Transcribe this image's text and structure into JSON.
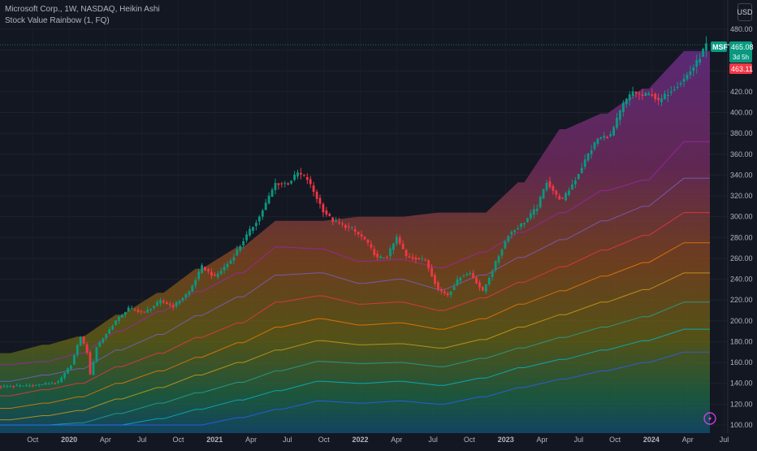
{
  "header": {
    "title": "Microsoft Corp., 1W, NASDAQ, Heikin Ashi",
    "indicator": "Stock Value Rainbow (1, FQ)",
    "currency": "USD"
  },
  "price_tags": {
    "symbol": "MSFT",
    "last": "465.08",
    "countdown": "3d 5h",
    "ha_close": "463.11",
    "symbol_color": "#089981",
    "ha_color": "#f23645"
  },
  "colors": {
    "background": "#131722",
    "up_candle": "#089981",
    "down_candle": "#f23645",
    "axis_text": "#b2b5be"
  },
  "chart_data": {
    "type": "candlestick",
    "y_ticks": [
      "480.00",
      "460.00",
      "440.00",
      "420.00",
      "400.00",
      "380.00",
      "360.00",
      "340.00",
      "320.00",
      "300.00",
      "280.00",
      "260.00",
      "240.00",
      "220.00",
      "200.00",
      "180.00",
      "160.00",
      "140.00",
      "120.00",
      "100.00"
    ],
    "x_ticks": [
      "Oct",
      "2020",
      "Apr",
      "Jul",
      "Oct",
      "2021",
      "Apr",
      "Jul",
      "Oct",
      "2022",
      "Apr",
      "Jul",
      "Oct",
      "2023",
      "Apr",
      "Jul",
      "Oct",
      "2024",
      "Apr",
      "Jul"
    ],
    "ylim": [
      100,
      480
    ],
    "price_path": [
      [
        0,
        137
      ],
      [
        10,
        138
      ],
      [
        18,
        141
      ],
      [
        22,
        158
      ],
      [
        25,
        185
      ],
      [
        27,
        170
      ],
      [
        28,
        148
      ],
      [
        30,
        175
      ],
      [
        36,
        200
      ],
      [
        40,
        212
      ],
      [
        45,
        208
      ],
      [
        50,
        219
      ],
      [
        54,
        214
      ],
      [
        59,
        228
      ],
      [
        63,
        252
      ],
      [
        67,
        242
      ],
      [
        72,
        258
      ],
      [
        77,
        282
      ],
      [
        81,
        300
      ],
      [
        86,
        332
      ],
      [
        90,
        332
      ],
      [
        93,
        342
      ],
      [
        96,
        336
      ],
      [
        101,
        306
      ],
      [
        104,
        296
      ],
      [
        110,
        288
      ],
      [
        114,
        278
      ],
      [
        118,
        260
      ],
      [
        121,
        262
      ],
      [
        124,
        280
      ],
      [
        127,
        262
      ],
      [
        133,
        258
      ],
      [
        137,
        230
      ],
      [
        140,
        225
      ],
      [
        144,
        243
      ],
      [
        147,
        246
      ],
      [
        151,
        228
      ],
      [
        155,
        256
      ],
      [
        159,
        283
      ],
      [
        164,
        295
      ],
      [
        168,
        309
      ],
      [
        171,
        334
      ],
      [
        173,
        325
      ],
      [
        174,
        320
      ],
      [
        176,
        316
      ],
      [
        180,
        336
      ],
      [
        184,
        360
      ],
      [
        187,
        375
      ],
      [
        191,
        378
      ],
      [
        195,
        408
      ],
      [
        198,
        420
      ],
      [
        201,
        416
      ],
      [
        204,
        418
      ],
      [
        206,
        410
      ],
      [
        210,
        422
      ],
      [
        214,
        432
      ],
      [
        218,
        448
      ],
      [
        221,
        465
      ]
    ],
    "rainbow": {
      "steps_x": [
        -5,
        3,
        13,
        15,
        24,
        26,
        36,
        38,
        49,
        51,
        61,
        63,
        74,
        76,
        86,
        88,
        99,
        101,
        112,
        114,
        124,
        126,
        137,
        139,
        150,
        152,
        162,
        164,
        175,
        177,
        188,
        190,
        201,
        203,
        214,
        216,
        223
      ],
      "top_band": [
        169,
        169,
        177,
        177,
        185,
        185,
        206,
        206,
        227,
        227,
        250,
        250,
        271,
        271,
        296,
        296,
        296,
        296,
        300,
        300,
        300,
        300,
        304,
        304,
        304,
        304,
        333,
        333,
        384,
        384,
        399,
        399,
        423,
        423,
        459,
        459,
        459
      ],
      "lines": [
        {
          "name": "purple",
          "color": "#9c27b0",
          "values": [
            158,
            158,
            161,
            161,
            169,
            169,
            190,
            190,
            209,
            209,
            228,
            228,
            246,
            246,
            271,
            271,
            269,
            269,
            257,
            257,
            259,
            259,
            251,
            251,
            266,
            266,
            285,
            285,
            304,
            304,
            325,
            325,
            335,
            335,
            372,
            372,
            372
          ]
        },
        {
          "name": "indigo",
          "color": "#7b61c8",
          "values": [
            142,
            142,
            148,
            148,
            154,
            154,
            172,
            172,
            187,
            187,
            205,
            205,
            223,
            223,
            244,
            244,
            246,
            246,
            236,
            236,
            240,
            240,
            230,
            230,
            244,
            244,
            261,
            261,
            278,
            278,
            296,
            296,
            310,
            310,
            337,
            337,
            337
          ]
        },
        {
          "name": "red",
          "color": "#f23645",
          "values": [
            128,
            128,
            134,
            134,
            140,
            140,
            156,
            156,
            169,
            169,
            184,
            184,
            198,
            198,
            218,
            218,
            224,
            224,
            216,
            216,
            218,
            218,
            210,
            210,
            222,
            222,
            237,
            237,
            252,
            252,
            268,
            268,
            282,
            282,
            304,
            304,
            304
          ]
        },
        {
          "name": "orange",
          "color": "#f57c00",
          "values": [
            116,
            116,
            121,
            121,
            127,
            127,
            140,
            140,
            152,
            152,
            165,
            165,
            179,
            179,
            194,
            194,
            202,
            202,
            196,
            196,
            198,
            198,
            192,
            192,
            202,
            202,
            216,
            216,
            229,
            229,
            243,
            243,
            256,
            256,
            275,
            275,
            275
          ]
        },
        {
          "name": "gold",
          "color": "#d4a017",
          "values": [
            105,
            105,
            109,
            109,
            114,
            114,
            125,
            125,
            136,
            136,
            148,
            148,
            160,
            160,
            172,
            172,
            181,
            181,
            177,
            177,
            178,
            178,
            174,
            174,
            182,
            182,
            194,
            194,
            206,
            206,
            218,
            218,
            230,
            230,
            246,
            246,
            246
          ]
        },
        {
          "name": "green",
          "color": "#26a69a",
          "values": [
            100,
            100,
            100,
            100,
            102,
            102,
            111,
            111,
            121,
            121,
            131,
            131,
            141,
            141,
            152,
            152,
            161,
            161,
            159,
            159,
            160,
            160,
            156,
            156,
            164,
            164,
            174,
            174,
            184,
            184,
            194,
            194,
            204,
            204,
            218,
            218,
            218
          ]
        },
        {
          "name": "teal",
          "color": "#00bcd4",
          "values": [
            100,
            100,
            100,
            100,
            100,
            100,
            100,
            100,
            106,
            106,
            115,
            115,
            124,
            124,
            133,
            133,
            142,
            142,
            140,
            140,
            142,
            142,
            138,
            138,
            145,
            145,
            155,
            155,
            163,
            163,
            172,
            172,
            181,
            181,
            192,
            192,
            192
          ]
        },
        {
          "name": "blue",
          "color": "#2962ff",
          "values": [
            100,
            100,
            100,
            100,
            100,
            100,
            100,
            100,
            100,
            100,
            100,
            100,
            107,
            107,
            115,
            115,
            123,
            123,
            121,
            121,
            123,
            123,
            120,
            120,
            127,
            127,
            136,
            136,
            144,
            144,
            152,
            152,
            160,
            160,
            170,
            170,
            170
          ]
        }
      ]
    },
    "last_price": 465.08,
    "ha_close": 463.11
  }
}
